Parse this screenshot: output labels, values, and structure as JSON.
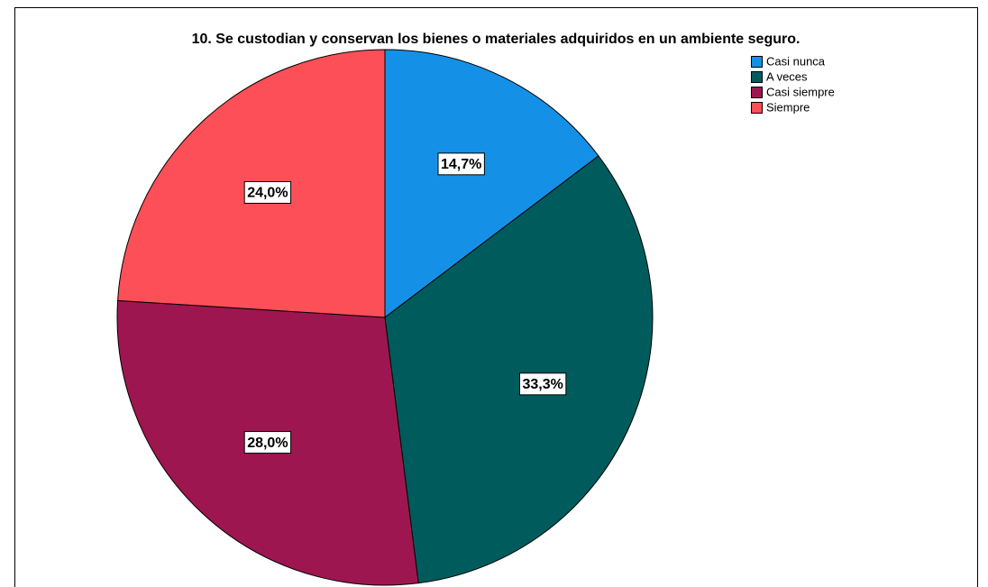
{
  "chart_data": {
    "type": "pie",
    "title": "10. Se custodian y conservan los bienes o materiales adquiridos en un ambiente seguro.",
    "categories": [
      "Casi nunca",
      "A veces",
      "Casi siempre",
      "Siempre"
    ],
    "values": [
      14.7,
      33.3,
      28.0,
      24.0
    ],
    "value_labels": [
      "14,7%",
      "33,3%",
      "28,0%",
      "24,0%"
    ],
    "colors": [
      "#1491e6",
      "#005c5c",
      "#9e1650",
      "#fd4f57"
    ],
    "legend": "top-right"
  }
}
